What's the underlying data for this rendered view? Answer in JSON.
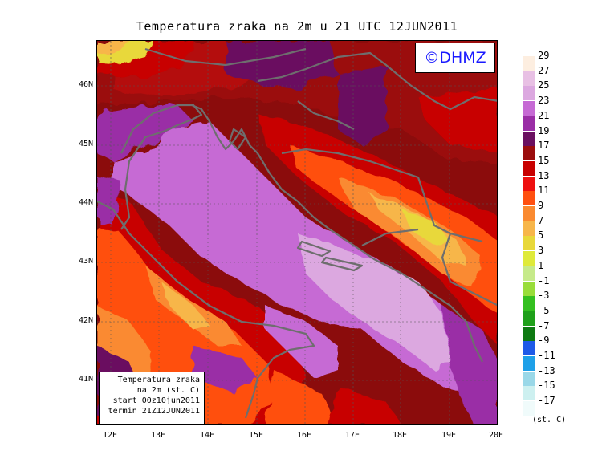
{
  "title": "Temperatura zraka na 2m u 21 UTC 12JUN2011",
  "logo_text": "©DHMZ",
  "info_box": {
    "line1": "Temperatura zraka",
    "line2": "na 2m (st. C)",
    "line3": "start 00z10jun2011",
    "line4": "termin 21Z12JUN2011"
  },
  "lat_labels": [
    "46N",
    "45N",
    "44N",
    "43N",
    "42N",
    "41N"
  ],
  "lon_labels": [
    "12E",
    "13E",
    "14E",
    "15E",
    "16E",
    "17E",
    "18E",
    "19E",
    "20E"
  ],
  "legend": {
    "unit": "(st. C)",
    "labels": [
      "29",
      "27",
      "25",
      "23",
      "21",
      "19",
      "17",
      "15",
      "13",
      "11",
      "9",
      "7",
      "5",
      "3",
      "1",
      "-1",
      "-3",
      "-5",
      "-7",
      "-9",
      "-11",
      "-13",
      "-15",
      "-17"
    ],
    "colors": [
      "#fdeee0",
      "#e8c0e4",
      "#dca8e0",
      "#c66ad4",
      "#9a2ea6",
      "#6a0f60",
      "#9b0d0d",
      "#c80000",
      "#ee1010",
      "#ff5010",
      "#fa8a30",
      "#f7b64a",
      "#e8d83a",
      "#dfea3a",
      "#c6ea8a",
      "#99dd3a",
      "#34c020",
      "#1fa01a",
      "#0e7a12",
      "#1e5ae8",
      "#1ea0e8",
      "#9ad8e8",
      "#cdf0f0",
      "#f0fbfb"
    ]
  }
}
